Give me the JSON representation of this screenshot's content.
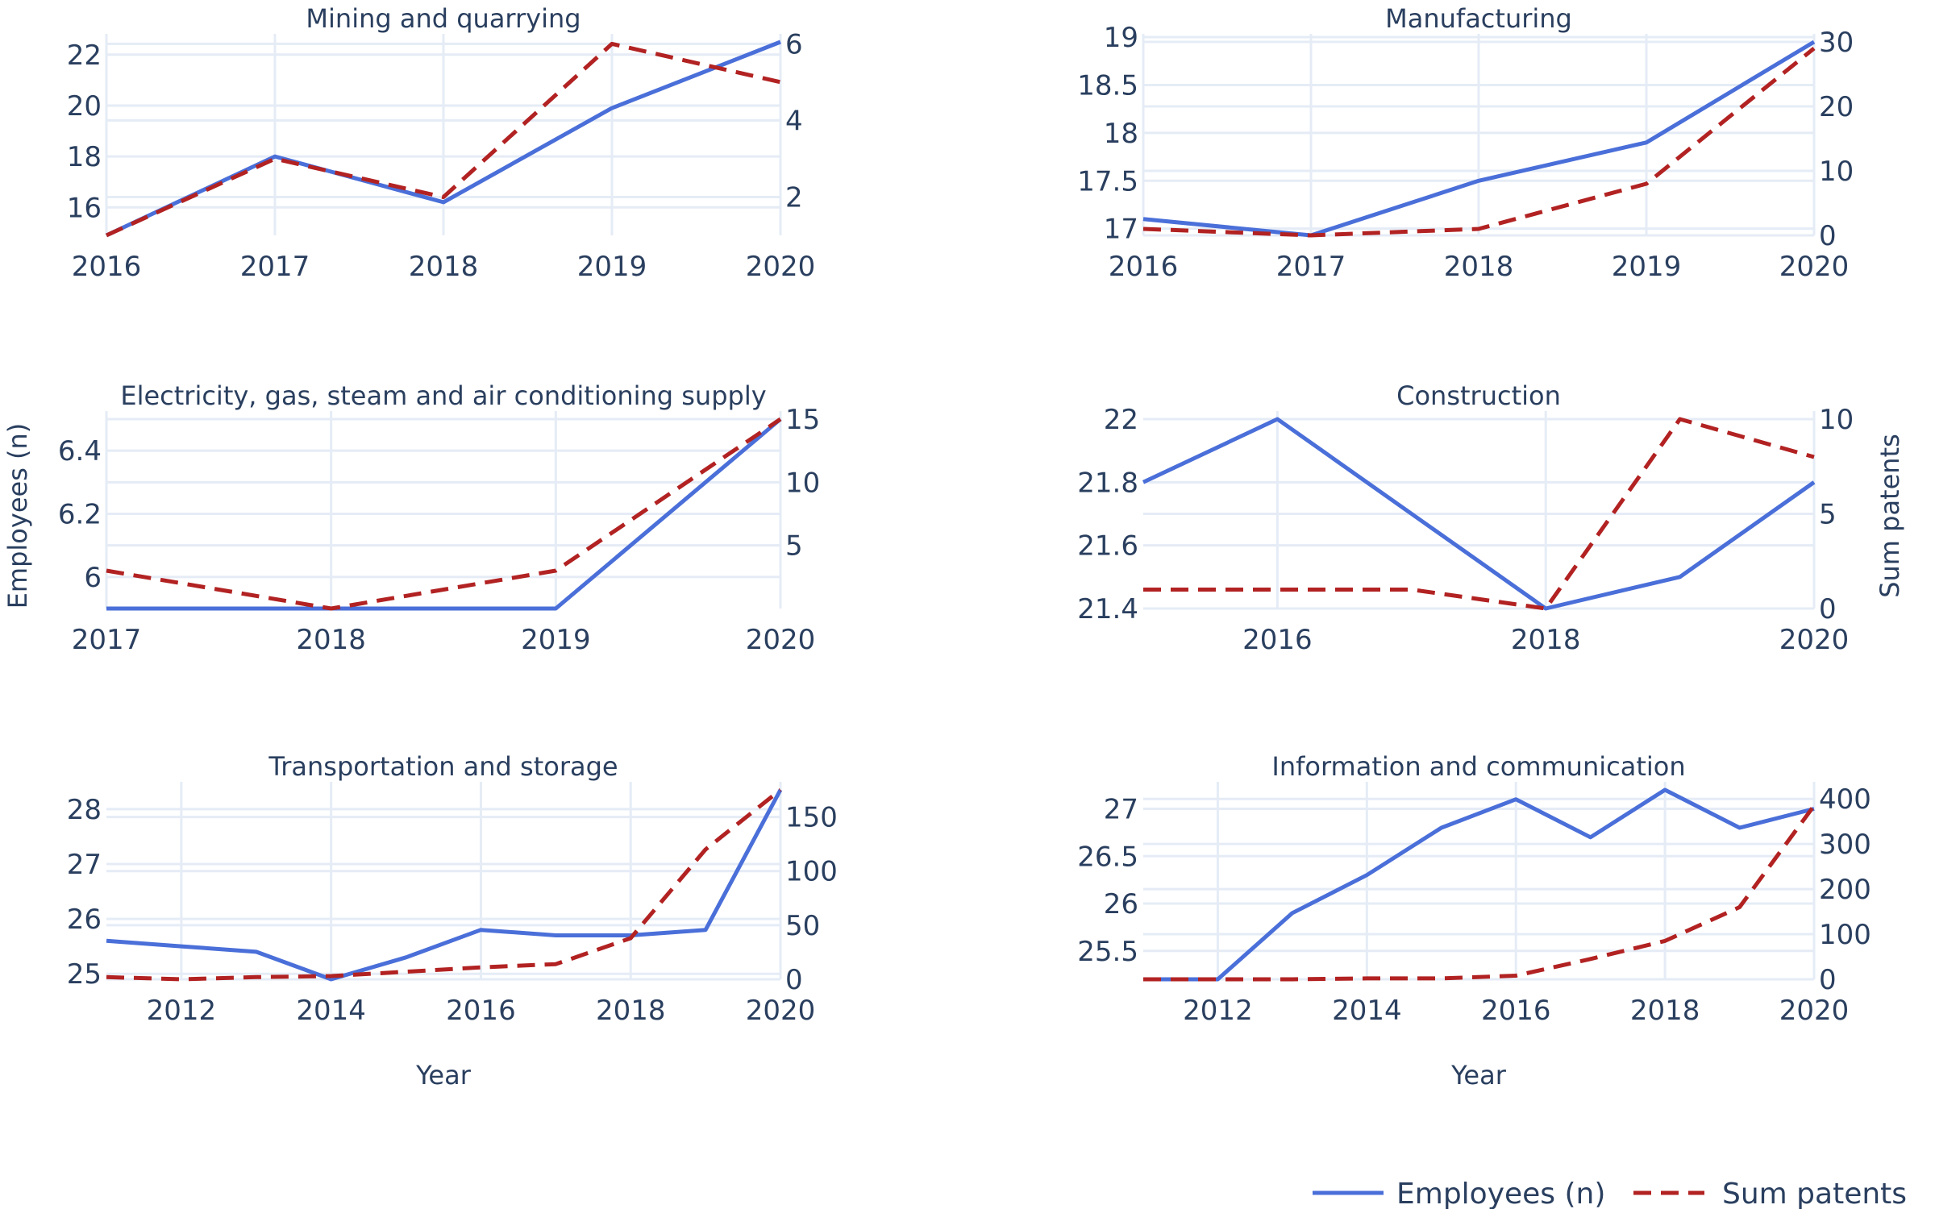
{
  "chart_data": [
    {
      "type": "line",
      "title": "Mining and quarrying",
      "x": [
        2016,
        2017,
        2018,
        2019,
        2020
      ],
      "xlim": [
        2016,
        2020
      ],
      "xticks": [
        2016,
        2017,
        2018,
        2019,
        2020
      ],
      "y1lim": [
        14.9,
        22.5
      ],
      "y1ticks": [
        16,
        18,
        20,
        22
      ],
      "y2lim": [
        1,
        6.05
      ],
      "y2ticks": [
        2,
        4,
        6
      ],
      "series": [
        {
          "name": "Employees (n)",
          "axis": "y1",
          "values": [
            14.9,
            18.0,
            16.2,
            19.9,
            22.5
          ]
        },
        {
          "name": "Sum patents",
          "axis": "y2",
          "values": [
            1,
            3,
            2,
            6,
            5
          ]
        }
      ]
    },
    {
      "type": "line",
      "title": "Manufacturing",
      "x": [
        2016,
        2017,
        2018,
        2019,
        2020
      ],
      "xlim": [
        2016,
        2020
      ],
      "xticks": [
        2016,
        2017,
        2018,
        2019,
        2020
      ],
      "y1lim": [
        16.93,
        18.95
      ],
      "y1ticks": [
        17,
        17.5,
        18,
        18.5,
        19
      ],
      "y2lim": [
        0,
        30
      ],
      "y2ticks": [
        0,
        10,
        20,
        30
      ],
      "series": [
        {
          "name": "Employees (n)",
          "axis": "y1",
          "values": [
            17.1,
            16.93,
            17.5,
            17.9,
            18.95
          ]
        },
        {
          "name": "Sum patents",
          "axis": "y2",
          "values": [
            1,
            0,
            1,
            8,
            29
          ]
        }
      ]
    },
    {
      "type": "line",
      "title": "Electricity, gas, steam and air conditioning supply",
      "x": [
        2017,
        2018,
        2019,
        2020
      ],
      "xlim": [
        2017,
        2020
      ],
      "xticks": [
        2017,
        2018,
        2019,
        2020
      ],
      "y1lim": [
        5.9,
        6.5
      ],
      "y1ticks": [
        6,
        6.2,
        6.4
      ],
      "y2lim": [
        0,
        15
      ],
      "y2ticks": [
        5,
        10,
        15
      ],
      "series": [
        {
          "name": "Employees (n)",
          "axis": "y1",
          "values": [
            5.9,
            5.9,
            5.9,
            6.5
          ]
        },
        {
          "name": "Sum patents",
          "axis": "y2",
          "values": [
            3,
            0,
            3,
            15
          ]
        }
      ]
    },
    {
      "type": "line",
      "title": "Construction",
      "x": [
        2015,
        2016,
        2017,
        2018,
        2019,
        2020
      ],
      "xlim": [
        2015,
        2020
      ],
      "xticks": [
        2016,
        2018,
        2020
      ],
      "y1lim": [
        21.4,
        22
      ],
      "y1ticks": [
        21.4,
        21.6,
        21.8,
        22
      ],
      "y2lim": [
        0,
        10
      ],
      "y2ticks": [
        0,
        5,
        10
      ],
      "series": [
        {
          "name": "Employees (n)",
          "axis": "y1",
          "values": [
            21.8,
            22.0,
            21.7,
            21.4,
            21.5,
            21.8
          ]
        },
        {
          "name": "Sum patents",
          "axis": "y2",
          "values": [
            1,
            1,
            1,
            0,
            10,
            8
          ]
        }
      ]
    },
    {
      "type": "line",
      "title": "Transportation and storage",
      "x": [
        2011,
        2012,
        2013,
        2014,
        2015,
        2016,
        2017,
        2018,
        2019,
        2020
      ],
      "xlim": [
        2011,
        2020
      ],
      "xticks": [
        2012,
        2014,
        2016,
        2018,
        2020
      ],
      "xlabel": "Year",
      "y1lim": [
        24.9,
        28.35
      ],
      "y1ticks": [
        25,
        26,
        27,
        28
      ],
      "y2lim": [
        0,
        175
      ],
      "y2ticks": [
        0,
        50,
        100,
        150
      ],
      "series": [
        {
          "name": "Employees (n)",
          "axis": "y1",
          "values": [
            25.6,
            25.5,
            25.4,
            24.9,
            25.3,
            25.8,
            25.7,
            25.7,
            25.8,
            28.35
          ]
        },
        {
          "name": "Sum patents",
          "axis": "y2",
          "values": [
            2,
            0,
            2,
            3,
            7,
            11,
            14,
            38,
            120,
            175
          ]
        }
      ]
    },
    {
      "type": "line",
      "title": "Information and communication",
      "x": [
        2011,
        2012,
        2013,
        2014,
        2015,
        2016,
        2017,
        2018,
        2019,
        2020
      ],
      "xlim": [
        2011,
        2020
      ],
      "xticks": [
        2012,
        2014,
        2016,
        2018,
        2020
      ],
      "xlabel": "Year",
      "y1lim": [
        25.2,
        27.2
      ],
      "y1ticks": [
        25.5,
        26,
        26.5,
        27
      ],
      "y2lim": [
        0,
        420
      ],
      "y2ticks": [
        0,
        100,
        200,
        300,
        400
      ],
      "series": [
        {
          "name": "Employees (n)",
          "axis": "y1",
          "values": [
            25.2,
            25.2,
            25.9,
            26.3,
            26.8,
            27.1,
            26.7,
            27.2,
            26.8,
            27.0
          ]
        },
        {
          "name": "Sum patents",
          "axis": "y2",
          "values": [
            0,
            0,
            0,
            2,
            2,
            8,
            45,
            85,
            160,
            385
          ]
        }
      ]
    }
  ],
  "y1_title": "Employees (n)",
  "y2_title": "Sum patents",
  "legend": {
    "position": "bottom-right",
    "items": [
      {
        "label": "Employees (n)",
        "color": "#4a6fd9",
        "dash": "solid"
      },
      {
        "label": "Sum patents",
        "color": "#b22222",
        "dash": "dash"
      }
    ]
  },
  "colors": {
    "employees": "#4a6fd9",
    "patents": "#b22222",
    "grid": "#e5ecf6",
    "text": "#2a3f5f"
  }
}
